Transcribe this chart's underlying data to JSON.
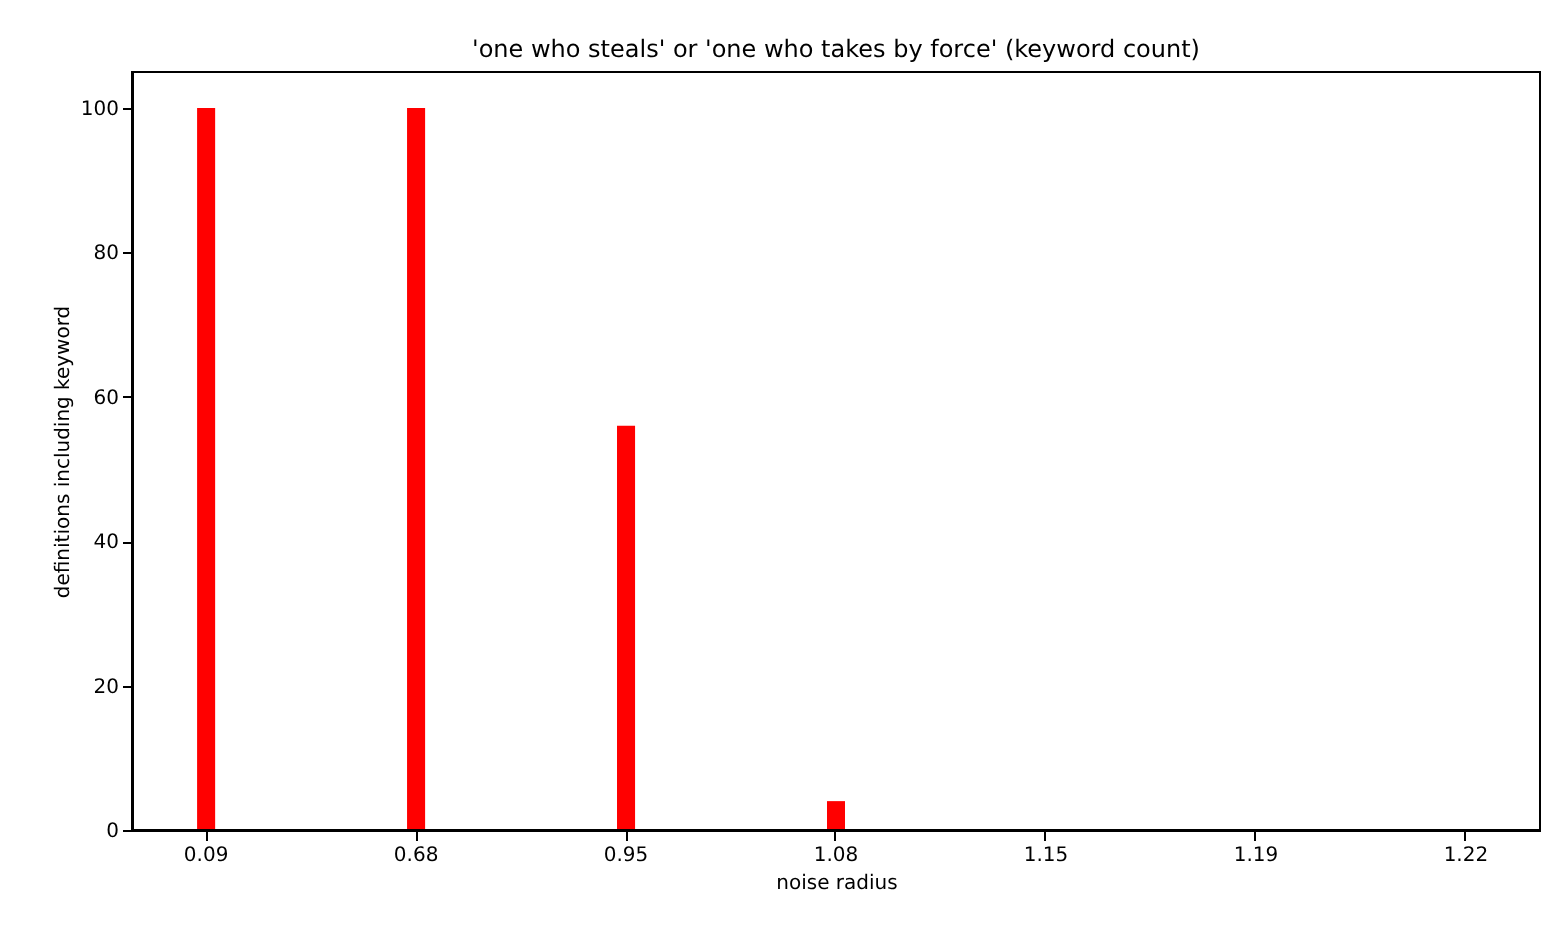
{
  "chart_data": {
    "type": "bar",
    "title": "'one who steals' or 'one who takes by force' (keyword count)",
    "xlabel": "noise radius",
    "ylabel": "definitions including keyword",
    "categories": [
      "0.09",
      "0.68",
      "0.95",
      "1.08",
      "1.15",
      "1.19",
      "1.22"
    ],
    "values": [
      100,
      100,
      56,
      4,
      0,
      0,
      0
    ],
    "color": "#ff0000",
    "ylim": [
      0,
      105
    ],
    "yticks": [
      0,
      20,
      40,
      60,
      80,
      100
    ],
    "grid": false
  }
}
